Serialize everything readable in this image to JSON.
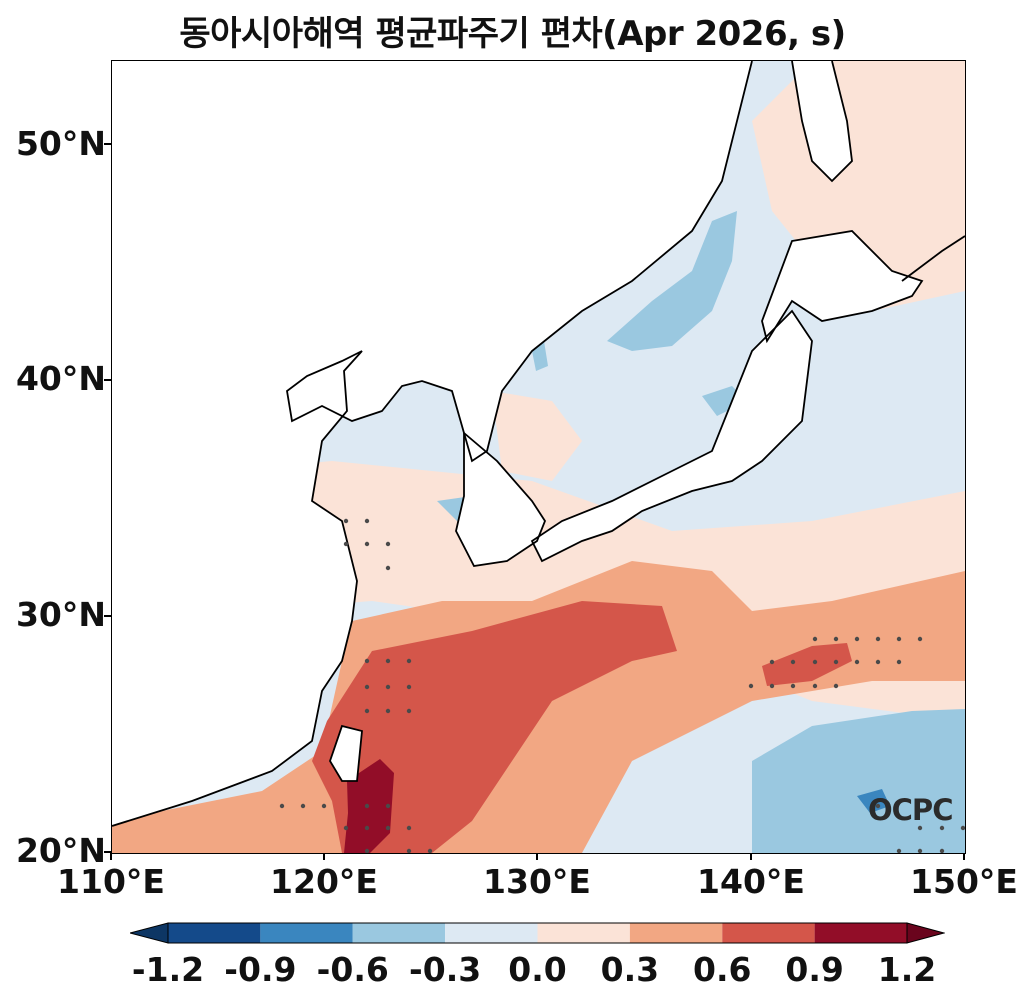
{
  "title": "동아시아해역 평균파주기 편차(Apr 2026, s)",
  "logo": "OCPC",
  "axes": {
    "lat_labels": [
      "50°N",
      "40°N",
      "30°N",
      "20°N"
    ],
    "lon_labels": [
      "110°E",
      "120°E",
      "130°E",
      "140°E",
      "150°E"
    ],
    "lon_range": [
      110,
      150
    ],
    "lat_range": [
      20,
      53.5
    ]
  },
  "colorbar": {
    "ticks": [
      "-1.2",
      "-0.9",
      "-0.6",
      "-0.3",
      "0.0",
      "0.3",
      "0.6",
      "0.9",
      "1.2"
    ],
    "colors": [
      "#144a8a",
      "#3a86bf",
      "#9ac8e0",
      "#dde9f3",
      "#fbe3d7",
      "#f2a783",
      "#d4564a",
      "#920d28"
    ],
    "under_color": "#0d3664",
    "over_color": "#6a041d"
  },
  "colors": {
    "land": "#ffffff",
    "coast": "#000000",
    "stipple": "#4a4a4a"
  }
}
